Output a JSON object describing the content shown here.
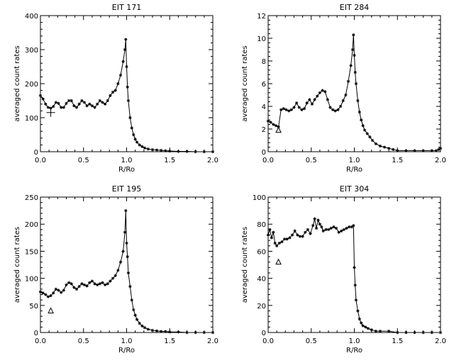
{
  "chart_data": [
    {
      "type": "line",
      "title": "EIT 171",
      "xlabel": "R/Ro",
      "ylabel": "averaged count rates",
      "xlim": [
        0,
        2
      ],
      "ylim": [
        0,
        400
      ],
      "xticks": [
        "0.0",
        "0.5",
        "1.0",
        "1.5",
        "2.0"
      ],
      "yticks": [
        "0",
        "100",
        "200",
        "300",
        "400"
      ],
      "annotation": {
        "symbol": "+",
        "x": 0.12,
        "y": 115
      },
      "x": [
        0.0,
        0.03,
        0.06,
        0.09,
        0.12,
        0.15,
        0.18,
        0.21,
        0.24,
        0.27,
        0.3,
        0.33,
        0.36,
        0.39,
        0.42,
        0.45,
        0.48,
        0.51,
        0.54,
        0.57,
        0.6,
        0.63,
        0.66,
        0.69,
        0.72,
        0.75,
        0.78,
        0.81,
        0.84,
        0.87,
        0.9,
        0.93,
        0.96,
        0.98,
        0.99,
        1.0,
        1.01,
        1.02,
        1.04,
        1.06,
        1.08,
        1.1,
        1.12,
        1.15,
        1.18,
        1.21,
        1.25,
        1.3,
        1.35,
        1.4,
        1.45,
        1.5,
        1.6,
        1.7,
        1.8,
        1.9,
        2.0
      ],
      "y": [
        165,
        155,
        140,
        130,
        128,
        133,
        145,
        142,
        130,
        130,
        142,
        150,
        150,
        135,
        130,
        140,
        150,
        145,
        135,
        140,
        135,
        130,
        140,
        150,
        145,
        140,
        150,
        165,
        175,
        180,
        200,
        225,
        265,
        300,
        330,
        250,
        190,
        150,
        100,
        70,
        50,
        37,
        28,
        20,
        15,
        11,
        8,
        6,
        5,
        4,
        3,
        2,
        1,
        1,
        0,
        0,
        0
      ]
    },
    {
      "type": "line",
      "title": "EIT 284",
      "xlabel": "R/Ro",
      "ylabel": "averaged count rates",
      "xlim": [
        0,
        2
      ],
      "ylim": [
        0,
        12
      ],
      "xticks": [
        "0.0",
        "0.5",
        "1.0",
        "1.5",
        "2.0"
      ],
      "yticks": [
        "0",
        "2",
        "4",
        "6",
        "8",
        "10",
        "12"
      ],
      "annotation": {
        "symbol": "△",
        "x": 0.12,
        "y": 1.9
      },
      "x": [
        0.0,
        0.03,
        0.06,
        0.09,
        0.12,
        0.15,
        0.18,
        0.21,
        0.24,
        0.27,
        0.3,
        0.33,
        0.36,
        0.39,
        0.42,
        0.45,
        0.48,
        0.51,
        0.54,
        0.57,
        0.6,
        0.63,
        0.66,
        0.69,
        0.72,
        0.75,
        0.78,
        0.81,
        0.84,
        0.87,
        0.9,
        0.93,
        0.96,
        0.98,
        0.99,
        1.0,
        1.01,
        1.02,
        1.04,
        1.06,
        1.08,
        1.1,
        1.12,
        1.15,
        1.18,
        1.21,
        1.25,
        1.3,
        1.35,
        1.4,
        1.45,
        1.5,
        1.6,
        1.7,
        1.8,
        1.9,
        1.95,
        1.98,
        2.0
      ],
      "y": [
        2.7,
        2.6,
        2.4,
        2.3,
        2.2,
        3.7,
        3.8,
        3.7,
        3.6,
        3.7,
        3.9,
        4.3,
        3.9,
        3.7,
        3.8,
        4.3,
        4.6,
        4.2,
        4.6,
        4.9,
        5.2,
        5.4,
        5.3,
        4.6,
        3.9,
        3.7,
        3.6,
        3.7,
        4.0,
        4.5,
        5.0,
        6.2,
        7.6,
        9.0,
        10.3,
        8.5,
        7.0,
        6.0,
        4.5,
        3.5,
        2.8,
        2.3,
        1.9,
        1.6,
        1.3,
        1.0,
        0.7,
        0.5,
        0.4,
        0.3,
        0.2,
        0.1,
        0.1,
        0.1,
        0.1,
        0.1,
        0.1,
        0.2,
        0.3
      ]
    },
    {
      "type": "line",
      "title": "EIT 195",
      "xlabel": "R/Ro",
      "ylabel": "averaged count rates",
      "xlim": [
        0,
        2
      ],
      "ylim": [
        0,
        250
      ],
      "xticks": [
        "0.0",
        "0.5",
        "1.0",
        "1.5",
        "2.0"
      ],
      "yticks": [
        "0",
        "50",
        "100",
        "150",
        "200",
        "250"
      ],
      "annotation": {
        "symbol": "△",
        "x": 0.12,
        "y": 40
      },
      "x": [
        0.0,
        0.03,
        0.06,
        0.09,
        0.12,
        0.15,
        0.18,
        0.21,
        0.24,
        0.27,
        0.3,
        0.33,
        0.36,
        0.39,
        0.42,
        0.45,
        0.48,
        0.51,
        0.54,
        0.57,
        0.6,
        0.63,
        0.66,
        0.69,
        0.72,
        0.75,
        0.78,
        0.81,
        0.84,
        0.87,
        0.9,
        0.93,
        0.96,
        0.98,
        0.99,
        1.0,
        1.01,
        1.02,
        1.04,
        1.06,
        1.08,
        1.1,
        1.12,
        1.15,
        1.18,
        1.21,
        1.25,
        1.3,
        1.35,
        1.4,
        1.45,
        1.5,
        1.6,
        1.7,
        1.8,
        1.9,
        2.0
      ],
      "y": [
        75,
        73,
        70,
        66,
        68,
        73,
        80,
        78,
        74,
        78,
        88,
        92,
        90,
        83,
        80,
        85,
        90,
        88,
        86,
        92,
        95,
        90,
        88,
        90,
        92,
        88,
        90,
        95,
        100,
        105,
        115,
        130,
        150,
        185,
        225,
        165,
        140,
        110,
        85,
        60,
        42,
        32,
        24,
        17,
        12,
        9,
        6,
        4,
        3,
        2,
        2,
        1,
        1,
        0,
        0,
        0,
        0
      ]
    },
    {
      "type": "line",
      "title": "EIT 304",
      "xlabel": "R/Ro",
      "ylabel": "averaged count rates",
      "xlim": [
        0,
        2
      ],
      "ylim": [
        0,
        100
      ],
      "xticks": [
        "0.0",
        "0.5",
        "1.0",
        "1.5",
        "2.0"
      ],
      "yticks": [
        "0",
        "20",
        "40",
        "60",
        "80",
        "100"
      ],
      "annotation": {
        "symbol": "△",
        "x": 0.12,
        "y": 52
      },
      "x": [
        0.0,
        0.02,
        0.04,
        0.06,
        0.08,
        0.1,
        0.13,
        0.16,
        0.19,
        0.22,
        0.25,
        0.28,
        0.31,
        0.34,
        0.37,
        0.4,
        0.43,
        0.46,
        0.49,
        0.52,
        0.54,
        0.56,
        0.58,
        0.6,
        0.62,
        0.64,
        0.67,
        0.7,
        0.73,
        0.76,
        0.79,
        0.82,
        0.85,
        0.88,
        0.91,
        0.94,
        0.97,
        0.99,
        1.0,
        1.01,
        1.02,
        1.04,
        1.06,
        1.08,
        1.1,
        1.13,
        1.16,
        1.2,
        1.25,
        1.3,
        1.4,
        1.5,
        1.6,
        1.7,
        1.8,
        1.9,
        2.0
      ],
      "y": [
        72,
        76,
        70,
        74,
        66,
        64,
        66,
        67,
        69,
        69,
        70,
        72,
        75,
        72,
        71,
        71,
        74,
        76,
        73,
        79,
        84,
        77,
        83,
        80,
        78,
        75,
        76,
        76,
        77,
        78,
        77,
        74,
        75,
        76,
        77,
        78,
        78,
        79,
        48,
        35,
        24,
        16,
        10,
        7,
        5,
        4,
        3,
        2,
        1,
        1,
        1,
        0,
        0,
        0,
        0,
        0,
        0
      ]
    }
  ]
}
